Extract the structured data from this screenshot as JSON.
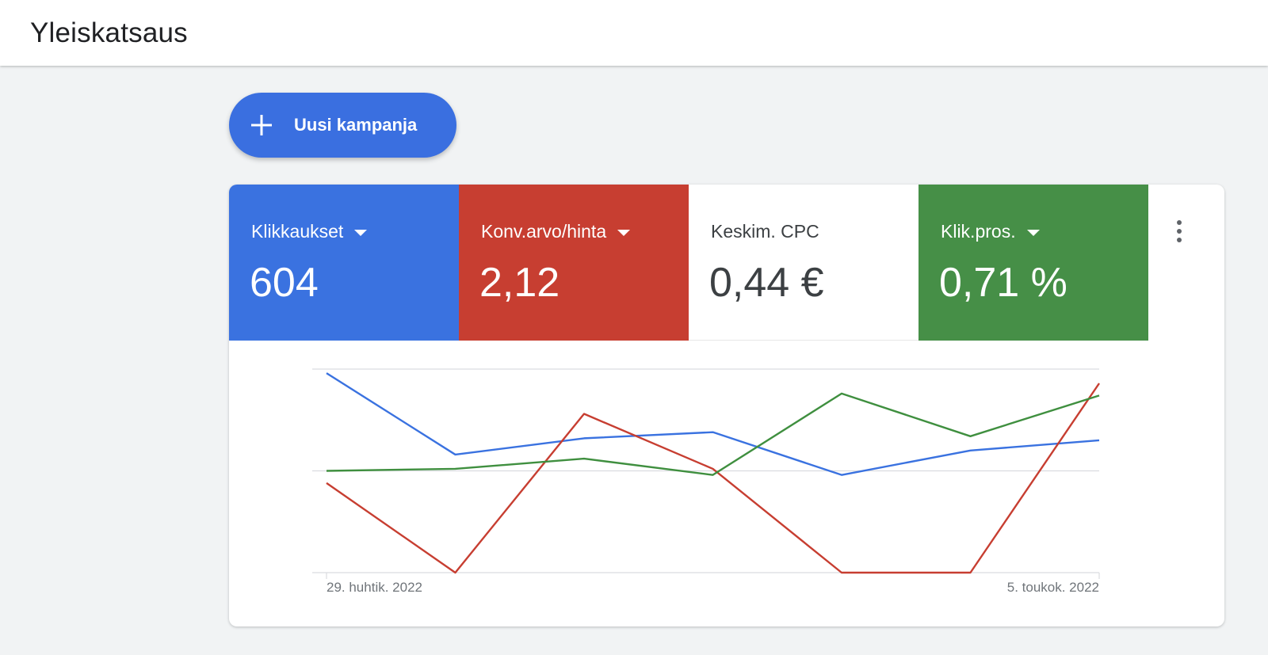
{
  "header": {
    "title": "Yleiskatsaus"
  },
  "new_campaign_button": {
    "label": "Uusi kampanja",
    "icon": "plus-icon"
  },
  "metrics": [
    {
      "label": "Klikkaukset",
      "value": "604",
      "color": "#3a72e0",
      "dropdown": true
    },
    {
      "label": "Konv.arvo/hinta",
      "value": "2,12",
      "color": "#c73e31",
      "dropdown": true
    },
    {
      "label": "Keskim. CPC",
      "value": "0,44 €",
      "color": "#ffffff",
      "dropdown": false
    },
    {
      "label": "Klik.pros.",
      "value": "0,71 %",
      "color": "#468f47",
      "dropdown": true
    }
  ],
  "more_menu": {
    "icon": "more-vert-icon"
  },
  "chart_data": {
    "type": "line",
    "x_tick_labels": [
      "29. huhtik. 2022",
      "5. toukok. 2022"
    ],
    "x_points": 7,
    "ylim": [
      0,
      100
    ],
    "grid": true,
    "series": [
      {
        "metric": "Klikkaukset",
        "color": "#3a72e0",
        "values": [
          98,
          58,
          66,
          69,
          48,
          60,
          65
        ]
      },
      {
        "metric": "Konv.arvo/hinta",
        "color": "#c73e31",
        "values": [
          44,
          0,
          78,
          51,
          0,
          0,
          93
        ]
      },
      {
        "metric": "Klik.pros.",
        "color": "#3f8f3f",
        "values": [
          50,
          51,
          56,
          48,
          88,
          67,
          87
        ]
      }
    ]
  }
}
